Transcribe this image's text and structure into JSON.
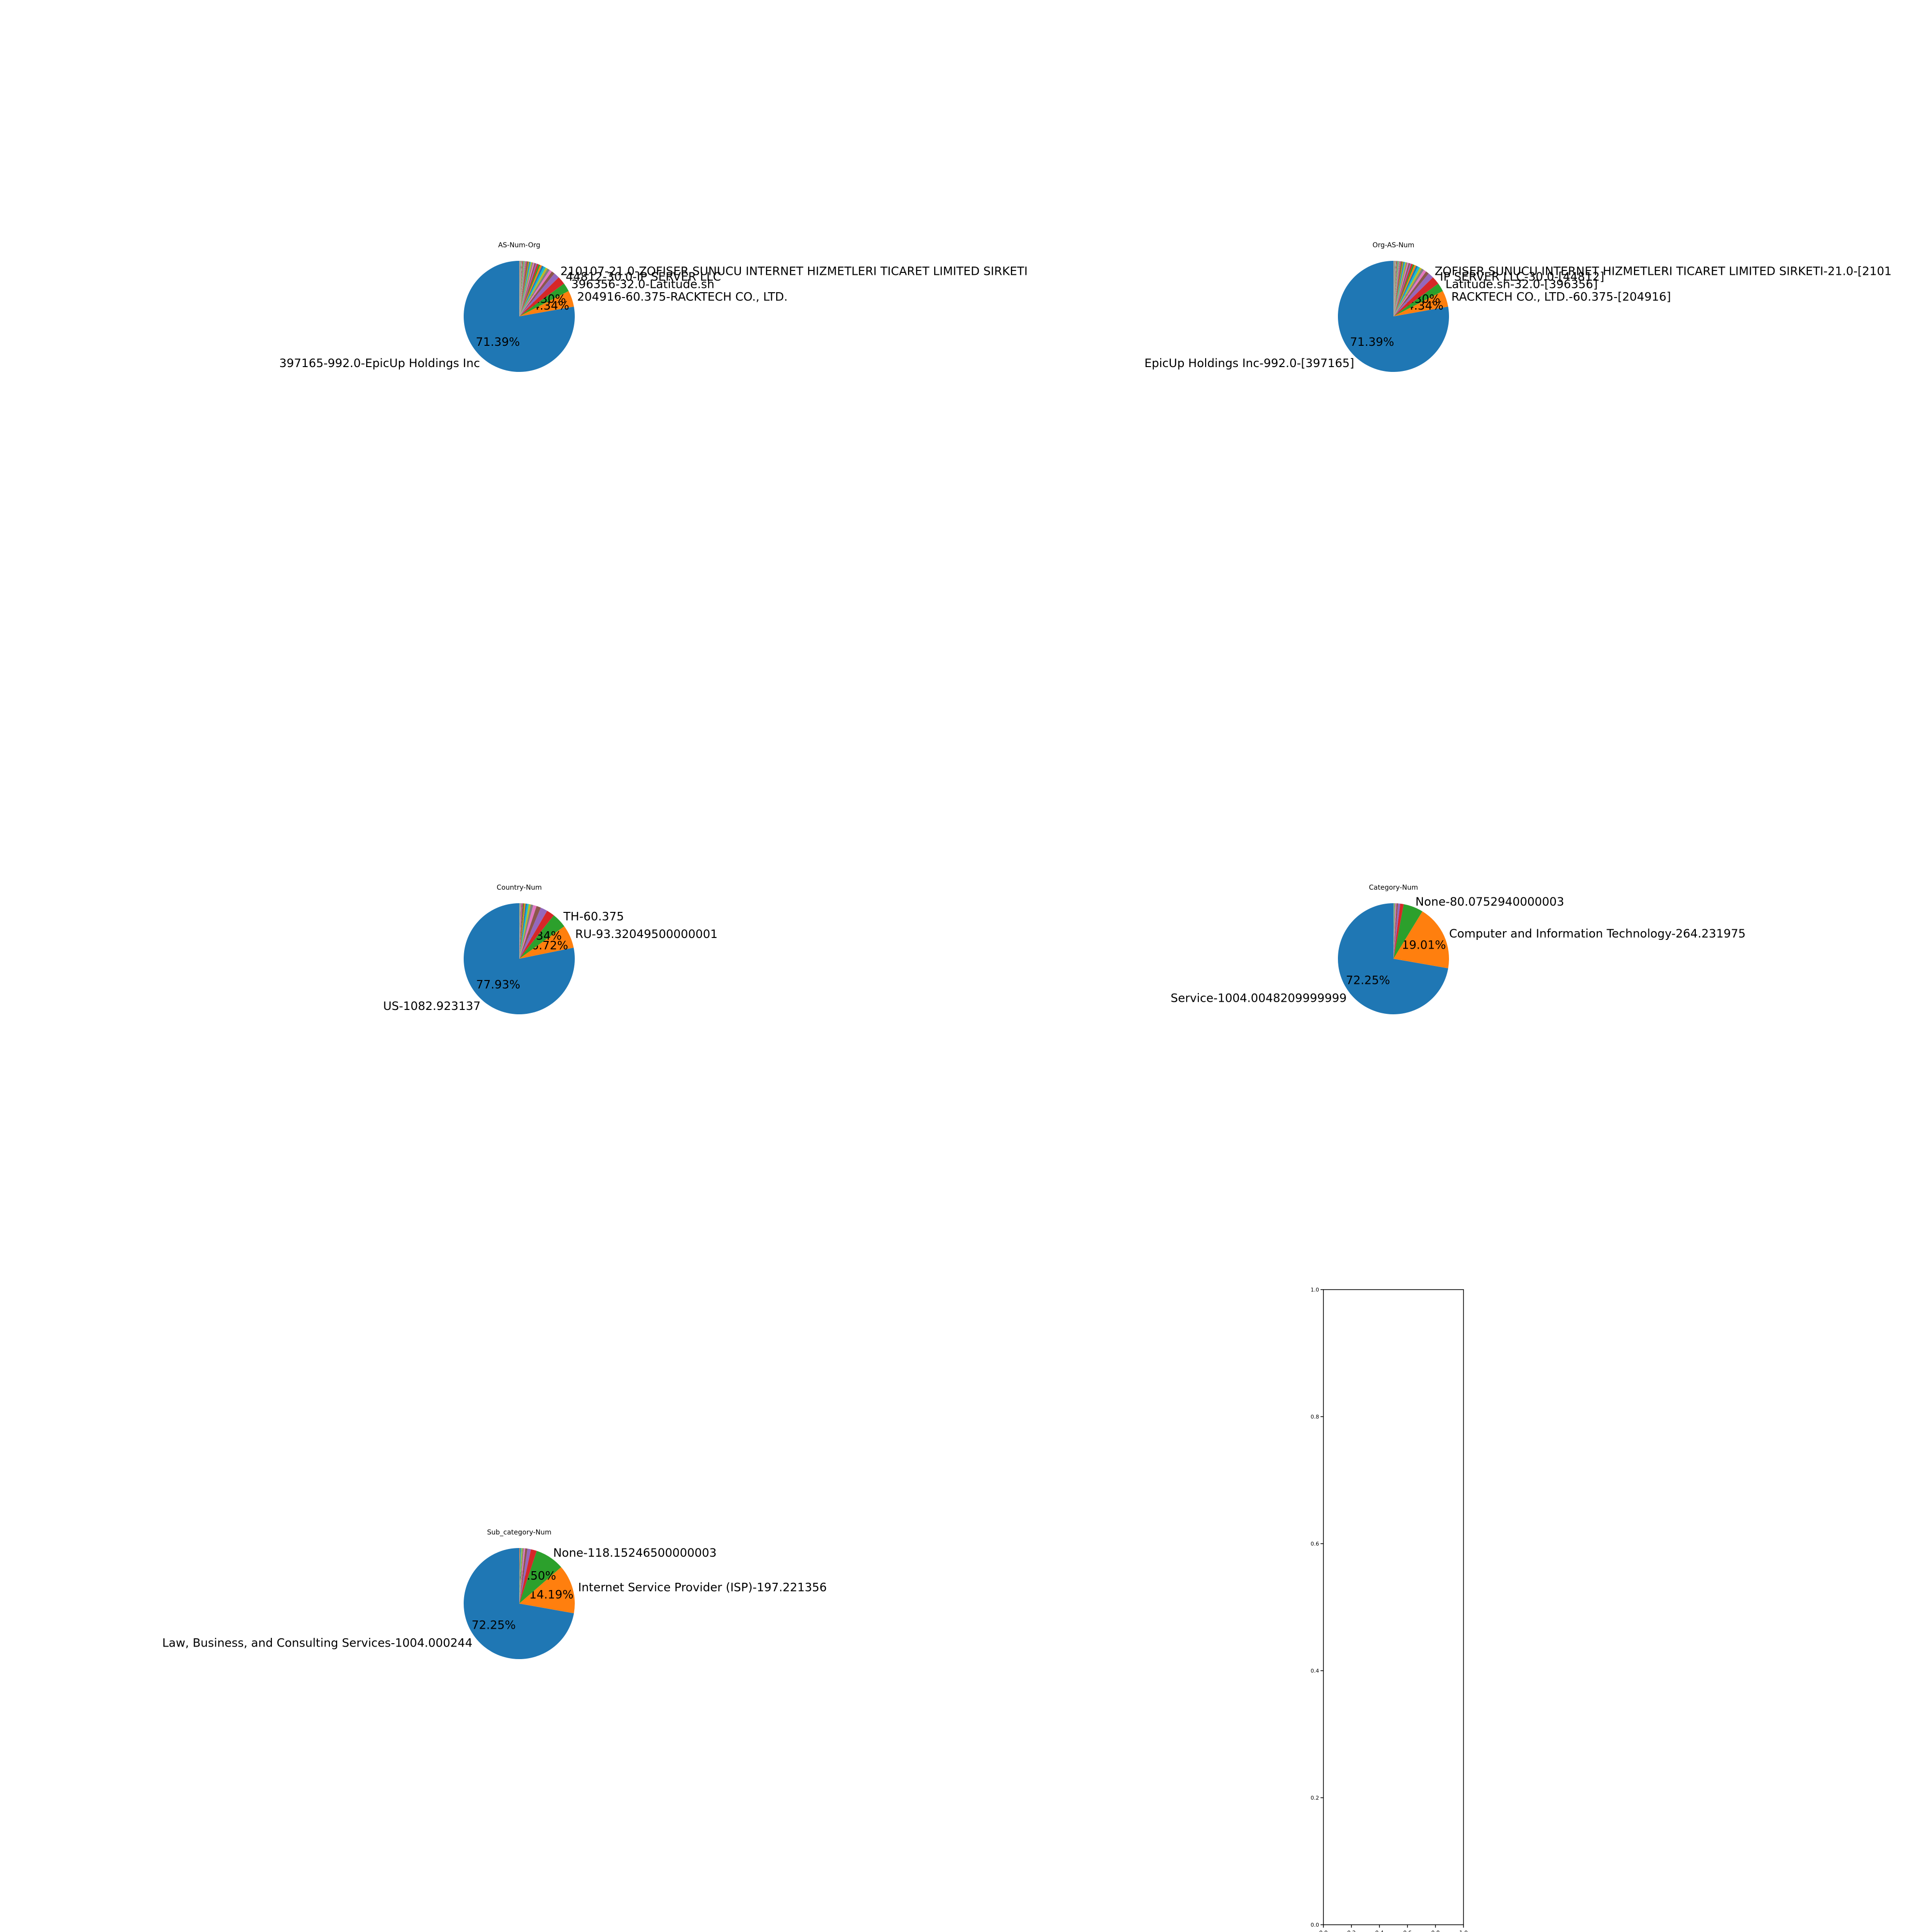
{
  "palette": [
    "#1f77b4",
    "#ff7f0e",
    "#2ca02c",
    "#d62728",
    "#9467bd",
    "#8c564b",
    "#e377c2",
    "#7f7f7f",
    "#bcbd22",
    "#17becf"
  ],
  "chart_data": [
    {
      "type": "pie",
      "title": "AS-Num-Org",
      "start_angle_deg": 90,
      "slices": [
        {
          "label": "397165-992.0-EpicUp Holdings Inc",
          "value": 992.0,
          "pct_label": "71.39%"
        },
        {
          "label": "204916-60.375-RACKTECH CO., LTD.",
          "value": 60.375,
          "pct_label": "4.34%"
        },
        {
          "label": "396356-32.0-Latitude.sh",
          "value": 32.0,
          "pct_label": "2.30%"
        },
        {
          "label": "44812-30.0-IP SERVER LLC",
          "value": 30.0
        },
        {
          "label": "210107-21.0-ZOFISER SUNUCU INTERNET HIZMETLERI TICARET LIMITED SIRKETI",
          "value": 21.0
        },
        {
          "label": "",
          "value": 12.0
        },
        {
          "label": "",
          "value": 10.0
        },
        {
          "label": "",
          "value": 9.0
        },
        {
          "label": "",
          "value": 8.0
        },
        {
          "label": "",
          "value": 8.0
        },
        {
          "label": "",
          "value": 7.0
        },
        {
          "label": "",
          "value": 7.0
        },
        {
          "label": "",
          "value": 6.0
        },
        {
          "label": "",
          "value": 6.0
        },
        {
          "label": "",
          "value": 5.0
        },
        {
          "label": "",
          "value": 5.0
        },
        {
          "label": "",
          "value": 5.0
        },
        {
          "label": "",
          "value": 4.0
        },
        {
          "label": "",
          "value": 4.0
        },
        {
          "label": "",
          "value": 4.0
        },
        {
          "label": "",
          "value": 3.0
        },
        {
          "label": "",
          "value": 3.0
        },
        {
          "label": "",
          "value": 3.0
        },
        {
          "label": "",
          "value": 3.0
        },
        {
          "label": "",
          "value": 2.0
        },
        {
          "label": "",
          "value": 2.0
        },
        {
          "label": "",
          "value": 2.0
        },
        {
          "label": "",
          "value": 2.0
        },
        {
          "label": "",
          "value": 2.0
        },
        {
          "label": "",
          "value": 1.5
        },
        {
          "label": "",
          "value": 1.5
        },
        {
          "label": "",
          "value": 1.5
        },
        {
          "label": "",
          "value": 1.0
        },
        {
          "label": "",
          "value": 1.0
        },
        {
          "label": "",
          "value": 1.0
        },
        {
          "label": "",
          "value": 1.0
        },
        {
          "label": "",
          "value": 1.0
        },
        {
          "label": "",
          "value": 1.0
        },
        {
          "label": "",
          "value": 1.0
        },
        {
          "label": "",
          "value": 1.0
        },
        {
          "label": "",
          "value": 0.8
        },
        {
          "label": "",
          "value": 0.8
        },
        {
          "label": "",
          "value": 0.6
        },
        {
          "label": "",
          "value": 0.6
        },
        {
          "label": "",
          "value": 0.5
        },
        {
          "label": "",
          "value": 0.5
        },
        {
          "label": "",
          "value": 0.4
        },
        {
          "label": "",
          "value": 0.3
        },
        {
          "label": "",
          "value": 0.3
        },
        {
          "label": "",
          "value": 0.2
        }
      ]
    },
    {
      "type": "pie",
      "title": "Org-AS-Num",
      "start_angle_deg": 90,
      "slices": [
        {
          "label": "EpicUp Holdings Inc-992.0-[397165]",
          "value": 992.0,
          "pct_label": "71.39%"
        },
        {
          "label": "RACKTECH CO., LTD.-60.375-[204916]",
          "value": 60.375,
          "pct_label": "4.34%"
        },
        {
          "label": "Latitude.sh-32.0-[396356]",
          "value": 32.0,
          "pct_label": "2.30%"
        },
        {
          "label": "IP SERVER LLC-30.0-[44812]",
          "value": 30.0
        },
        {
          "label": "ZOFISER SUNUCU INTERNET HIZMETLERI TICARET LIMITED SIRKETI-21.0-[2101",
          "value": 21.0
        },
        {
          "label": "",
          "value": 12.0
        },
        {
          "label": "",
          "value": 10.0
        },
        {
          "label": "",
          "value": 9.0
        },
        {
          "label": "",
          "value": 8.0
        },
        {
          "label": "",
          "value": 8.0
        },
        {
          "label": "",
          "value": 7.0
        },
        {
          "label": "",
          "value": 7.0
        },
        {
          "label": "",
          "value": 6.0
        },
        {
          "label": "",
          "value": 6.0
        },
        {
          "label": "",
          "value": 5.0
        },
        {
          "label": "",
          "value": 5.0
        },
        {
          "label": "",
          "value": 5.0
        },
        {
          "label": "",
          "value": 4.0
        },
        {
          "label": "",
          "value": 4.0
        },
        {
          "label": "",
          "value": 4.0
        },
        {
          "label": "",
          "value": 3.0
        },
        {
          "label": "",
          "value": 3.0
        },
        {
          "label": "",
          "value": 3.0
        },
        {
          "label": "",
          "value": 3.0
        },
        {
          "label": "",
          "value": 2.0
        },
        {
          "label": "",
          "value": 2.0
        },
        {
          "label": "",
          "value": 2.0
        },
        {
          "label": "",
          "value": 2.0
        },
        {
          "label": "",
          "value": 2.0
        },
        {
          "label": "",
          "value": 1.5
        },
        {
          "label": "",
          "value": 1.5
        },
        {
          "label": "",
          "value": 1.5
        },
        {
          "label": "",
          "value": 1.0
        },
        {
          "label": "",
          "value": 1.0
        },
        {
          "label": "",
          "value": 1.0
        },
        {
          "label": "",
          "value": 1.0
        },
        {
          "label": "",
          "value": 1.0
        },
        {
          "label": "",
          "value": 1.0
        },
        {
          "label": "",
          "value": 1.0
        },
        {
          "label": "",
          "value": 1.0
        },
        {
          "label": "",
          "value": 0.8
        },
        {
          "label": "",
          "value": 0.8
        },
        {
          "label": "",
          "value": 0.6
        },
        {
          "label": "",
          "value": 0.6
        },
        {
          "label": "",
          "value": 0.5
        },
        {
          "label": "",
          "value": 0.5
        },
        {
          "label": "",
          "value": 0.4
        },
        {
          "label": "",
          "value": 0.3
        },
        {
          "label": "",
          "value": 0.3
        },
        {
          "label": "",
          "value": 0.2
        }
      ]
    },
    {
      "type": "pie",
      "title": "Country-Num",
      "start_angle_deg": 90,
      "slices": [
        {
          "label": "US-1082.923137",
          "value": 1082.923137,
          "pct_label": "77.93%"
        },
        {
          "label": "RU-93.32049500000001",
          "value": 93.32049500000001,
          "pct_label": "6.72%"
        },
        {
          "label": "TH-60.375",
          "value": 60.375,
          "pct_label": "4.34%"
        },
        {
          "label": "",
          "value": 32.0
        },
        {
          "label": "",
          "value": 28.0
        },
        {
          "label": "",
          "value": 18.0
        },
        {
          "label": "",
          "value": 14.0
        },
        {
          "label": "",
          "value": 10.0
        },
        {
          "label": "",
          "value": 8.0
        },
        {
          "label": "",
          "value": 7.0
        },
        {
          "label": "",
          "value": 6.0
        },
        {
          "label": "",
          "value": 5.0
        },
        {
          "label": "",
          "value": 4.0
        },
        {
          "label": "",
          "value": 3.0
        },
        {
          "label": "",
          "value": 3.0
        },
        {
          "label": "",
          "value": 2.0
        },
        {
          "label": "",
          "value": 2.0
        },
        {
          "label": "",
          "value": 1.5
        },
        {
          "label": "",
          "value": 1.0
        },
        {
          "label": "",
          "value": 1.0
        },
        {
          "label": "",
          "value": 0.8
        },
        {
          "label": "",
          "value": 0.6
        },
        {
          "label": "",
          "value": 0.5
        },
        {
          "label": "",
          "value": 0.4
        },
        {
          "label": "",
          "value": 0.3
        }
      ]
    },
    {
      "type": "pie",
      "title": "Category-Num",
      "start_angle_deg": 90,
      "slices": [
        {
          "label": "Service-1004.0048209999999",
          "value": 1004.0048209999999,
          "pct_label": "72.25%"
        },
        {
          "label": "Computer and Information Technology-264.231975",
          "value": 264.231975,
          "pct_label": "19.01%"
        },
        {
          "label": "None-80.0752940000003",
          "value": 80.0752940000003
        },
        {
          "label": "",
          "value": 14.0
        },
        {
          "label": "",
          "value": 9.0
        },
        {
          "label": "",
          "value": 6.0
        },
        {
          "label": "",
          "value": 4.0
        },
        {
          "label": "",
          "value": 3.0
        },
        {
          "label": "",
          "value": 2.0
        },
        {
          "label": "",
          "value": 1.5
        },
        {
          "label": "",
          "value": 1.0
        },
        {
          "label": "",
          "value": 0.6
        }
      ]
    },
    {
      "type": "pie",
      "title": "Sub_category-Num",
      "start_angle_deg": 90,
      "slices": [
        {
          "label": "Law, Business, and Consulting Services-1004.000244",
          "value": 1004.000244,
          "pct_label": "72.25%"
        },
        {
          "label": "Internet Service Provider (ISP)-197.221356",
          "value": 197.221356,
          "pct_label": "14.19%"
        },
        {
          "label": "None-118.15246500000003",
          "value": 118.15246500000003,
          "pct_label": "8.50%"
        },
        {
          "label": "",
          "value": 24.0
        },
        {
          "label": "",
          "value": 14.0
        },
        {
          "label": "",
          "value": 9.0
        },
        {
          "label": "",
          "value": 6.0
        },
        {
          "label": "",
          "value": 5.0
        },
        {
          "label": "",
          "value": 4.0
        },
        {
          "label": "",
          "value": 3.0
        },
        {
          "label": "",
          "value": 2.0
        },
        {
          "label": "",
          "value": 1.5
        },
        {
          "label": "",
          "value": 1.0
        },
        {
          "label": "",
          "value": 0.8
        },
        {
          "label": "",
          "value": 0.5
        },
        {
          "label": "",
          "value": 0.3
        }
      ]
    },
    {
      "type": "empty",
      "xlim": [
        0.0,
        1.0
      ],
      "ylim": [
        0.0,
        1.0
      ],
      "xticks": [
        "0.0",
        "0.2",
        "0.4",
        "0.6",
        "0.8",
        "1.0"
      ],
      "yticks": [
        "0.0",
        "0.2",
        "0.4",
        "0.6",
        "0.8",
        "1.0"
      ]
    }
  ]
}
